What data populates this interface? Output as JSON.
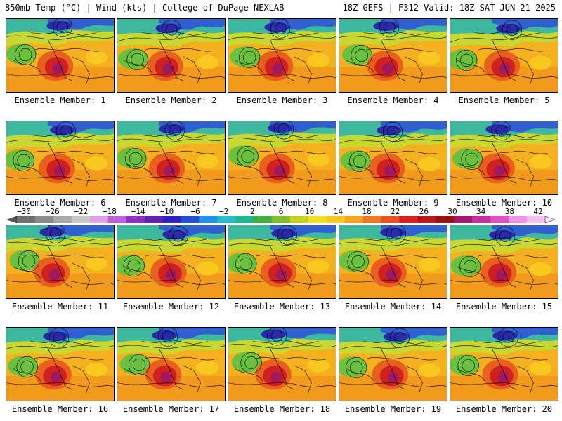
{
  "header": {
    "left": "850mb Temp (°C) | Wind (kts) | College of DuPage NEXLAB",
    "right": "18Z GEFS | F312 Valid: 18Z SAT JUN 21 2025"
  },
  "member_label_prefix": "Ensemble Member:",
  "members": [
    "1",
    "2",
    "3",
    "4",
    "5",
    "6",
    "7",
    "8",
    "9",
    "10",
    "11",
    "12",
    "13",
    "14",
    "15",
    "16",
    "17",
    "18",
    "19",
    "20"
  ],
  "colorbar": {
    "labels": [
      "−30",
      "−26",
      "−22",
      "−18",
      "−14",
      "−10",
      "−6",
      "−2",
      "2",
      "6",
      "10",
      "14",
      "18",
      "22",
      "26",
      "30",
      "34",
      "38",
      "42"
    ],
    "colors": [
      "#6e6e6e",
      "#8a8a8a",
      "#a8a8a8",
      "#c8c8c8",
      "#e0a0e8",
      "#c060d8",
      "#9030c0",
      "#6020b0",
      "#3020c0",
      "#2050d8",
      "#2090e8",
      "#20c0d0",
      "#20b890",
      "#40b040",
      "#80c030",
      "#c8d020",
      "#f0e020",
      "#f8c820",
      "#f8a020",
      "#f07820",
      "#e85020",
      "#d82020",
      "#b81818",
      "#981010",
      "#a01870",
      "#c030a0",
      "#e050c8",
      "#f090e8",
      "#f8c0f0"
    ]
  }
}
